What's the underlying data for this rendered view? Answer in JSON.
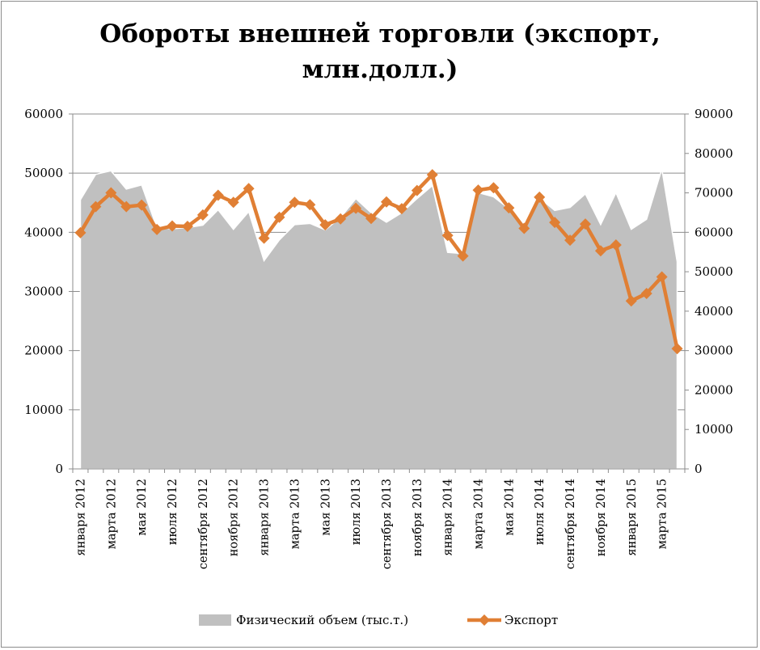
{
  "chart_data": {
    "type": "area+line",
    "title_line1": "Обороты внешней торговли (экспорт,",
    "title_line2": "млн.долл.)",
    "y_left": {
      "min": 0,
      "max": 60000,
      "ticks": [
        "0",
        "10000",
        "20000",
        "30000",
        "40000",
        "50000",
        "60000"
      ]
    },
    "y_right": {
      "min": 0,
      "max": 90000,
      "ticks": [
        "0",
        "10000",
        "20000",
        "30000",
        "40000",
        "50000",
        "60000",
        "70000",
        "80000",
        "90000"
      ]
    },
    "x_ticks": [
      "января 2012",
      "марта 2012",
      "мая 2012",
      "июля 2012",
      "сентября 2012",
      "ноября 2012",
      "января 2013",
      "марта 2013",
      "мая 2013",
      "июля 2013",
      "сентября 2013",
      "ноября 2013",
      "января 2014",
      "марта 2014",
      "мая 2014",
      "июля 2014",
      "сентября 2014",
      "ноября 2014",
      "января 2015",
      "марта 2015"
    ],
    "series": [
      {
        "name": "Физический объем (тыс.т.)",
        "axis": "left",
        "color": "#c0c0c0",
        "values": [
          45500,
          49800,
          50400,
          47300,
          48000,
          40800,
          40600,
          40800,
          41200,
          43800,
          40500,
          43500,
          35200,
          38700,
          41300,
          41500,
          40400,
          42500,
          45700,
          43300,
          41700,
          43300,
          45700,
          47900,
          36600,
          36400,
          46700,
          46000,
          44000,
          41400,
          45800,
          43700,
          44200,
          46500,
          41300,
          46700,
          40500,
          42200,
          50700,
          35000
        ]
      },
      {
        "name": "Экспорт",
        "axis": "right",
        "color": "#e07f34",
        "values": [
          59900,
          66500,
          70000,
          66500,
          66900,
          60700,
          61600,
          61500,
          64400,
          69400,
          67600,
          71100,
          58500,
          63800,
          67600,
          67000,
          61900,
          63400,
          66100,
          63500,
          67700,
          66000,
          70600,
          74600,
          59200,
          54000,
          70700,
          71300,
          66200,
          61000,
          68900,
          62500,
          58000,
          62100,
          55300,
          56800,
          42600,
          44500,
          48700,
          30500
        ]
      }
    ],
    "legend": {
      "position": "bottom"
    }
  }
}
